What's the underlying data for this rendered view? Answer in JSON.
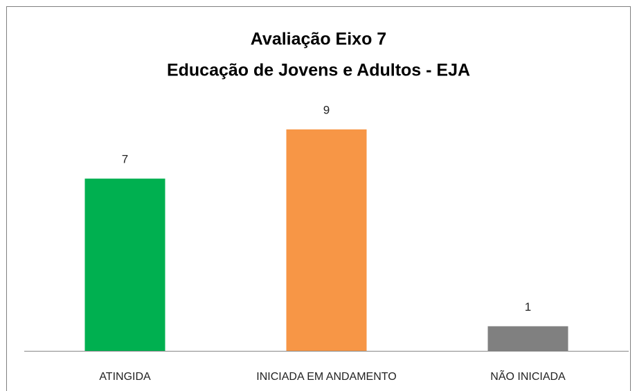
{
  "chart_data": {
    "type": "bar",
    "title": [
      "Avaliação Eixo 7",
      "Educação de Jovens e Adultos - EJA"
    ],
    "categories": [
      "ATINGIDA",
      "INICIADA EM ANDAMENTO",
      "NÃO INICIADA"
    ],
    "values": [
      7,
      9,
      1
    ],
    "colors": [
      "#00b050",
      "#f79646",
      "#808080"
    ]
  }
}
